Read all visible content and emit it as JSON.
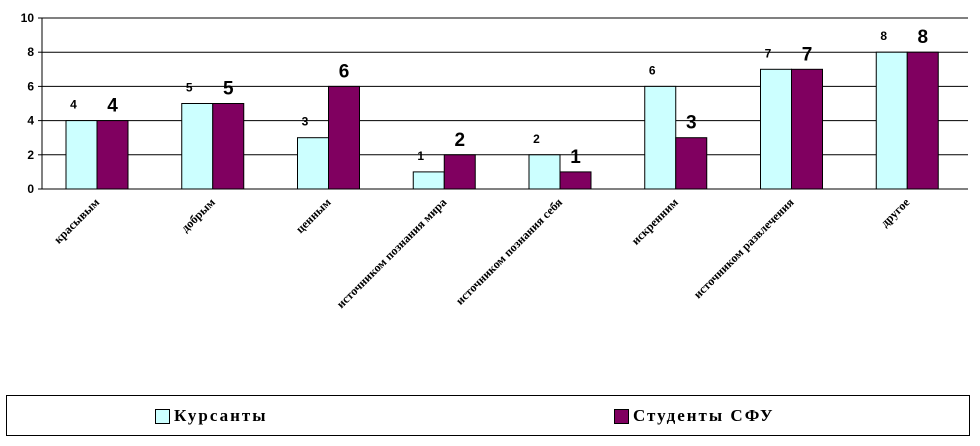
{
  "chart_data": {
    "type": "bar",
    "categories": [
      "красывым",
      "добрым",
      "ценным",
      "источником познания мира",
      "источником познания себя",
      "искренним",
      "источником развлечения",
      "другое"
    ],
    "series": [
      {
        "name": "Курсанты",
        "values": [
          4,
          5,
          3,
          1,
          2,
          6,
          7,
          8
        ],
        "color": "#ccffff"
      },
      {
        "name": "Студенты СФУ",
        "values": [
          4,
          5,
          6,
          2,
          1,
          3,
          7,
          8
        ],
        "color": "#800060"
      }
    ],
    "ylim": [
      0,
      10
    ],
    "yticks": [
      "0",
      "2",
      "4",
      "6",
      "8",
      "10"
    ],
    "grid": true,
    "legend_position": "bottom"
  }
}
